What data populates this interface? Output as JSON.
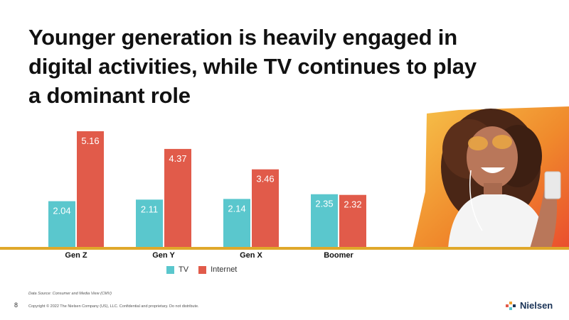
{
  "title_lines": [
    "Younger generation is heavily engaged in",
    "digital activities, while TV continues to play",
    "a dominant role"
  ],
  "colors": {
    "tv": "#5ac7cd",
    "internet": "#e15b4a",
    "baseline": "#e0a82a",
    "accent_gradient": [
      "#f6c24a",
      "#f08a2c",
      "#ea4e2e"
    ]
  },
  "chart_data": {
    "type": "bar",
    "categories": [
      "Gen Z",
      "Gen Y",
      "Gen X",
      "Boomer"
    ],
    "series": [
      {
        "name": "TV",
        "values": [
          2.04,
          2.11,
          2.14,
          2.35
        ]
      },
      {
        "name": "Internet",
        "values": [
          5.16,
          4.37,
          3.46,
          2.32
        ]
      }
    ],
    "title": "",
    "xlabel": "",
    "ylabel": "",
    "ylim": [
      0,
      5.5
    ],
    "grid": false,
    "legend": "bottom"
  },
  "legend": {
    "tv": "TV",
    "internet": "Internet"
  },
  "footnote": "Data Source: Consumer and Media View (CMV)",
  "page_number": "8",
  "copyright": "Copyright © 2022 The Nielsen Company (US), LLC. Confidential and proprietary. Do not distribute.",
  "brand": "Nielsen",
  "photo_icon": "smiling-woman-with-phone-photo"
}
